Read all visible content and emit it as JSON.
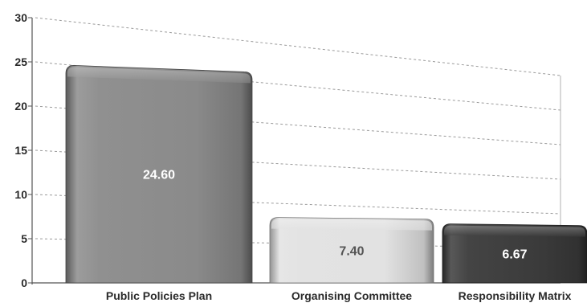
{
  "chart_data": {
    "type": "bar",
    "title": "",
    "xlabel": "",
    "ylabel": "",
    "ylim": [
      0,
      30
    ],
    "yticks": [
      0,
      5,
      10,
      15,
      20,
      25,
      30
    ],
    "grid": true,
    "legend": "none",
    "categories": [
      "Public Policies Plan",
      "Organising Committee",
      "Responsibility Matrix"
    ],
    "values": [
      24.6,
      7.4,
      6.67
    ],
    "data_labels": [
      "24.60",
      "7.40",
      "6.67"
    ],
    "colors": [
      "#8a8a8a",
      "#e2e2e2",
      "#3a3a3a"
    ],
    "label_colors": [
      "#ffffff",
      "#555555",
      "#ffffff"
    ]
  }
}
